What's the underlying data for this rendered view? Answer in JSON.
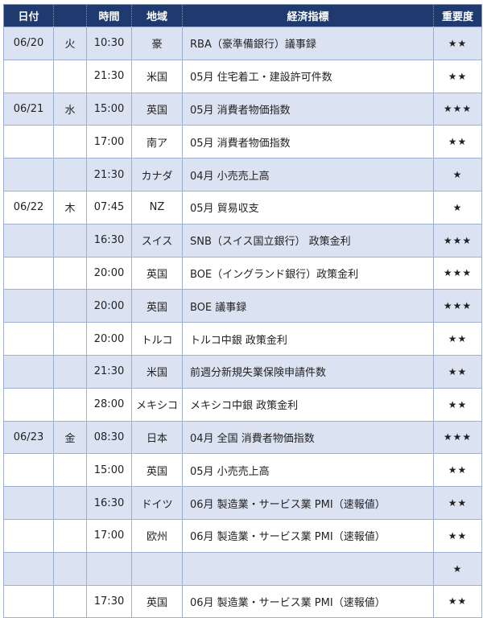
{
  "header": {
    "date": "日付",
    "weekday": "",
    "time": "時間",
    "region": "地域",
    "indicator": "経済指標",
    "importance": "重要度"
  },
  "colors": {
    "header_bg": "#1f3a6e",
    "alt_row": "#dbe3f2"
  },
  "rows": [
    {
      "date": "06/20",
      "weekday": "火",
      "time": "10:30",
      "region": "豪",
      "indicator": "RBA（豪準備銀行）議事録",
      "importance": "★★"
    },
    {
      "date": "",
      "weekday": "",
      "time": "21:30",
      "region": "米国",
      "indicator": "05月 住宅着工・建設許可件数",
      "importance": "★★"
    },
    {
      "date": "06/21",
      "weekday": "水",
      "time": "15:00",
      "region": "英国",
      "indicator": "05月 消費者物価指数",
      "importance": "★★★"
    },
    {
      "date": "",
      "weekday": "",
      "time": "17:00",
      "region": "南ア",
      "indicator": "05月 消費者物価指数",
      "importance": "★★"
    },
    {
      "date": "",
      "weekday": "",
      "time": "21:30",
      "region": "カナダ",
      "indicator": "04月 小売売上高",
      "importance": "★"
    },
    {
      "date": "06/22",
      "weekday": "木",
      "time": "07:45",
      "region": "NZ",
      "indicator": "05月 貿易収支",
      "importance": "★"
    },
    {
      "date": "",
      "weekday": "",
      "time": "16:30",
      "region": "スイス",
      "indicator": "SNB（スイス国立銀行） 政策金利",
      "importance": "★★★"
    },
    {
      "date": "",
      "weekday": "",
      "time": "20:00",
      "region": "英国",
      "indicator": "BOE（イングランド銀行）政策金利",
      "importance": "★★★"
    },
    {
      "date": "",
      "weekday": "",
      "time": "20:00",
      "region": "英国",
      "indicator": "BOE 議事録",
      "importance": "★★★"
    },
    {
      "date": "",
      "weekday": "",
      "time": "20:00",
      "region": "トルコ",
      "indicator": "トルコ中銀 政策金利",
      "importance": "★★"
    },
    {
      "date": "",
      "weekday": "",
      "time": "21:30",
      "region": "米国",
      "indicator": "前週分新規失業保険申請件数",
      "importance": "★★"
    },
    {
      "date": "",
      "weekday": "",
      "time": "28:00",
      "region": "メキシコ",
      "indicator": "メキシコ中銀 政策金利",
      "importance": "★★"
    },
    {
      "date": "06/23",
      "weekday": "金",
      "time": "08:30",
      "region": "日本",
      "indicator": "04月 全国 消費者物価指数",
      "importance": "★★★"
    },
    {
      "date": "",
      "weekday": "",
      "time": "15:00",
      "region": "英国",
      "indicator": "05月 小売売上高",
      "importance": "★★"
    },
    {
      "date": "",
      "weekday": "",
      "time": "16:30",
      "region": "ドイツ",
      "indicator": "06月 製造業・サービス業 PMI（速報値）",
      "importance": "★★"
    },
    {
      "date": "",
      "weekday": "",
      "time": "17:00",
      "region": "欧州",
      "indicator": "06月 製造業・サービス業 PMI（速報値）",
      "importance": "★★"
    },
    {
      "date": "",
      "weekday": "",
      "time": "",
      "region": "",
      "indicator": "",
      "importance": "★"
    },
    {
      "date": "",
      "weekday": "",
      "time": "17:30",
      "region": "英国",
      "indicator": "06月 製造業・サービス業 PMI（速報値）",
      "importance": "★★"
    }
  ]
}
